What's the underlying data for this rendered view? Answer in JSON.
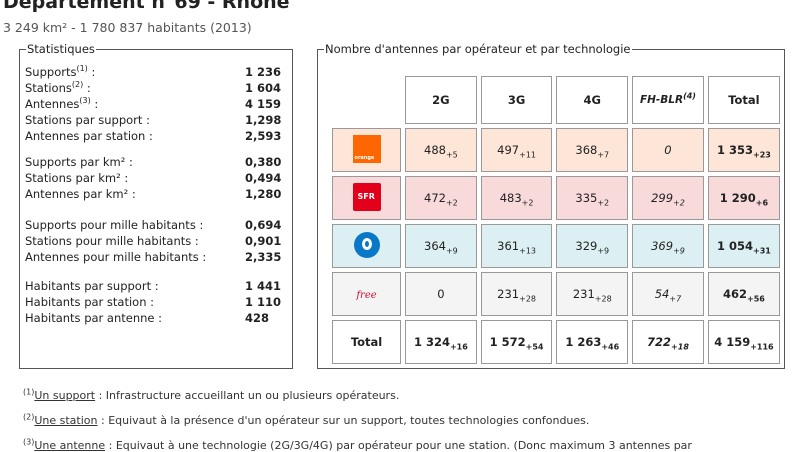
{
  "header": {
    "title": "Département n°69 - Rhône",
    "subtitle": "3 249 km² - 1 780 837 habitants (2013)"
  },
  "stats": {
    "legend": "Statistiques",
    "rows": [
      {
        "label": "Supports",
        "sup": "(1)",
        "tail": " :",
        "value": "1 236"
      },
      {
        "label": "Stations",
        "sup": "(2)",
        "tail": " :",
        "value": "1 604"
      },
      {
        "label": "Antennes",
        "sup": "(3)",
        "tail": " :",
        "value": "4 159"
      },
      {
        "label": "Stations par support :",
        "value": "1,298"
      },
      {
        "label": "Antennes par station :",
        "value": "2,593"
      },
      {
        "label": "Supports par km² :",
        "value": "0,380"
      },
      {
        "label": "Stations par km² :",
        "value": "0,494"
      },
      {
        "label": "Antennes par km² :",
        "value": "1,280"
      },
      {
        "label": "Supports pour mille habitants :",
        "value": "0,694"
      },
      {
        "label": "Stations pour mille habitants :",
        "value": "0,901"
      },
      {
        "label": "Antennes pour mille habitants :",
        "value": "2,335"
      },
      {
        "label": "Habitants par support :",
        "value": "1 441"
      },
      {
        "label": "Habitants par station :",
        "value": "1 110"
      },
      {
        "label": "Habitants par antenne :",
        "value": "428"
      }
    ]
  },
  "antennas": {
    "legend": "Nombre d'antennes par opérateur et par technologie",
    "headers": [
      "2G",
      "3G",
      "4G",
      "FH-BLR",
      "Total"
    ],
    "fh_sup": "(4)",
    "total_label": "Total",
    "operators": [
      {
        "name": "orange",
        "logo_text": "orange",
        "cells": [
          [
            "488",
            "+5"
          ],
          [
            "497",
            "+11"
          ],
          [
            "368",
            "+7"
          ],
          [
            "0",
            ""
          ],
          [
            "1 353",
            "+23"
          ]
        ]
      },
      {
        "name": "sfr",
        "logo_text": "SFR",
        "cells": [
          [
            "472",
            "+2"
          ],
          [
            "483",
            "+2"
          ],
          [
            "335",
            "+2"
          ],
          [
            "299",
            "+2"
          ],
          [
            "1 290",
            "+6"
          ]
        ]
      },
      {
        "name": "bouygues",
        "logo_text": "",
        "cells": [
          [
            "364",
            "+9"
          ],
          [
            "361",
            "+13"
          ],
          [
            "329",
            "+9"
          ],
          [
            "369",
            "+9"
          ],
          [
            "1 054",
            "+31"
          ]
        ]
      },
      {
        "name": "free",
        "logo_text": "free",
        "cells": [
          [
            "0",
            ""
          ],
          [
            "231",
            "+28"
          ],
          [
            "231",
            "+28"
          ],
          [
            "54",
            "+7"
          ],
          [
            "462",
            "+56"
          ]
        ]
      }
    ],
    "totals": [
      [
        "1 324",
        "+16"
      ],
      [
        "1 572",
        "+54"
      ],
      [
        "1 263",
        "+46"
      ],
      [
        "722",
        "+18"
      ],
      [
        "4 159",
        "+116"
      ]
    ]
  },
  "notes": [
    {
      "sup": "(1)",
      "term": "Un support",
      "text": " : Infrastructure accueillant un ou plusieurs opérateurs."
    },
    {
      "sup": "(2)",
      "term": "Une station",
      "text": " : Equivaut à la présence d'un opérateur sur un support, toutes technologies confondues."
    },
    {
      "sup": "(3)",
      "term": "Une antenne",
      "text": " : Equivaut à une technologie (2G/3G/4G) par opérateur pour une station. (Donc maximum 3 antennes par"
    }
  ],
  "colors": {
    "orange_row": "#fde5d8",
    "sfr_row": "#f9dadb",
    "bouygues_row": "#dcf0f3",
    "free_row": "#f4f4f4"
  }
}
